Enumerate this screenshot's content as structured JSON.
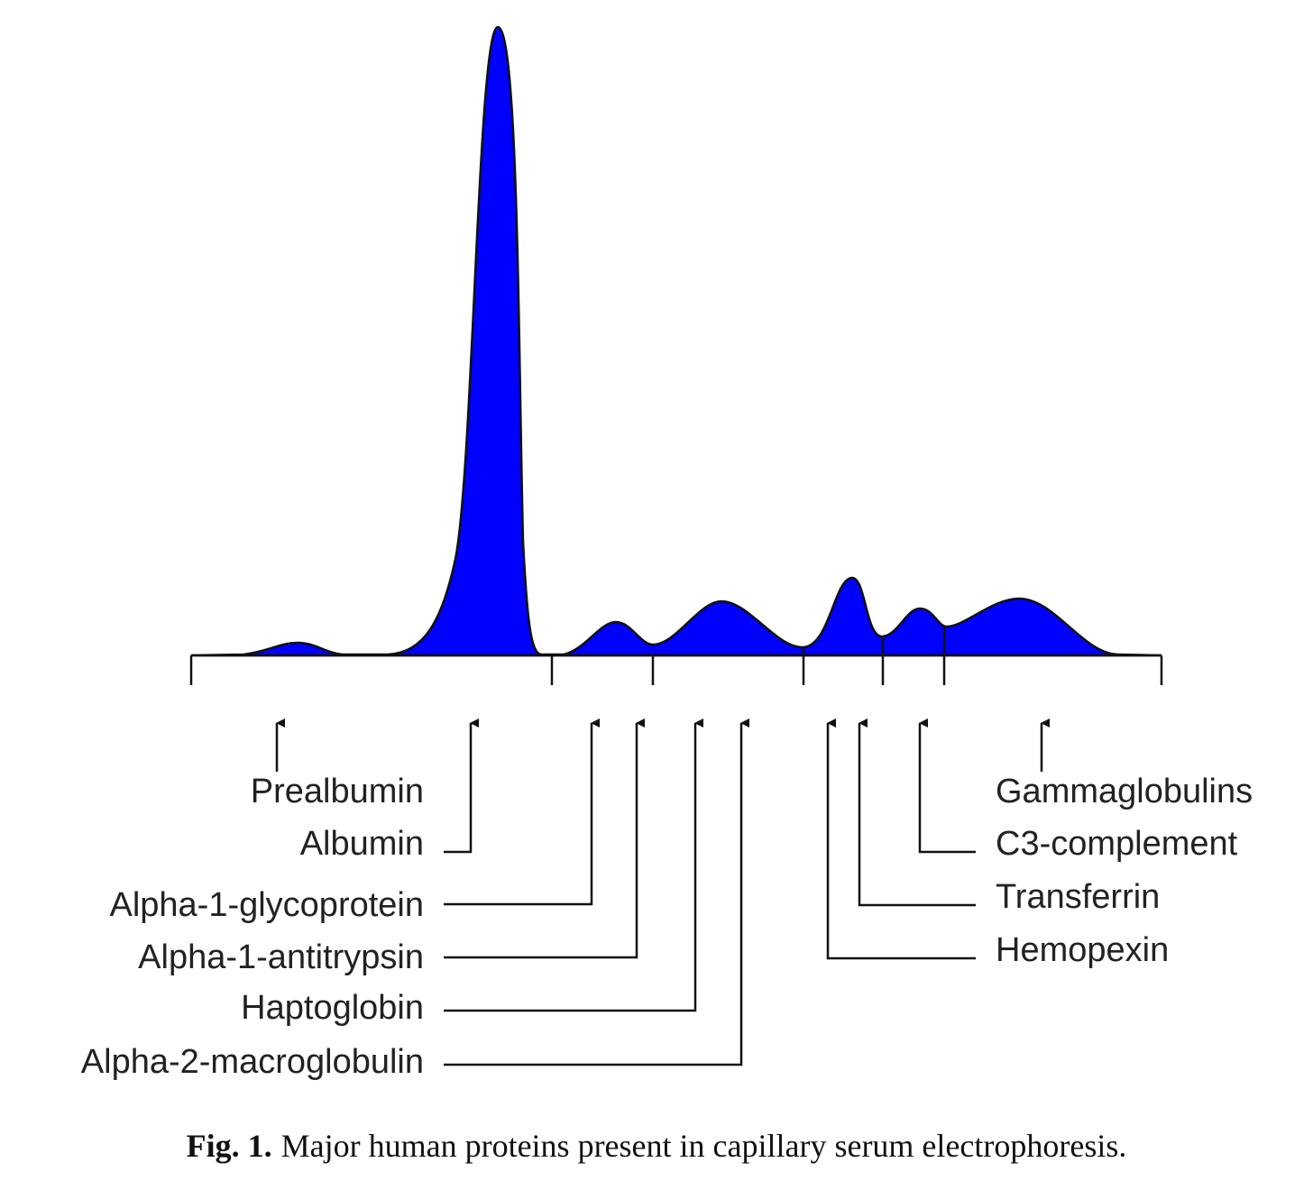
{
  "labels": {
    "left": [
      "Prealbumin",
      "Albumin",
      "Alpha-1-glycoprotein",
      "Alpha-1-antitrypsin",
      "Haptoglobin",
      "Alpha-2-macroglobulin"
    ],
    "right": [
      "Gammaglobulins",
      "C3-complement",
      "Transferrin",
      "Hemopexin"
    ]
  },
  "caption": {
    "label": "Fig. 1.",
    "text": "Major human proteins present in capillary serum electrophoresis."
  }
}
